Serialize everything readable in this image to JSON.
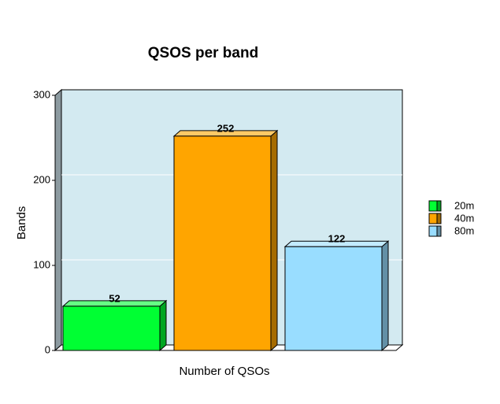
{
  "chart_data": {
    "type": "bar3d",
    "title": "QSOS per band",
    "x_label": "Number of QSOs",
    "y_label": "Bands",
    "series": [
      {
        "name": "20m",
        "color": "#00ff33",
        "values": [
          52
        ]
      },
      {
        "name": "40m",
        "color": "#ffa500",
        "values": [
          252
        ]
      },
      {
        "name": "80m",
        "color": "#99ddff",
        "values": [
          122
        ]
      }
    ],
    "ylim": [
      0,
      300
    ],
    "yticks": [
      0,
      100,
      200,
      300
    ],
    "grid": true,
    "legend": "right"
  }
}
